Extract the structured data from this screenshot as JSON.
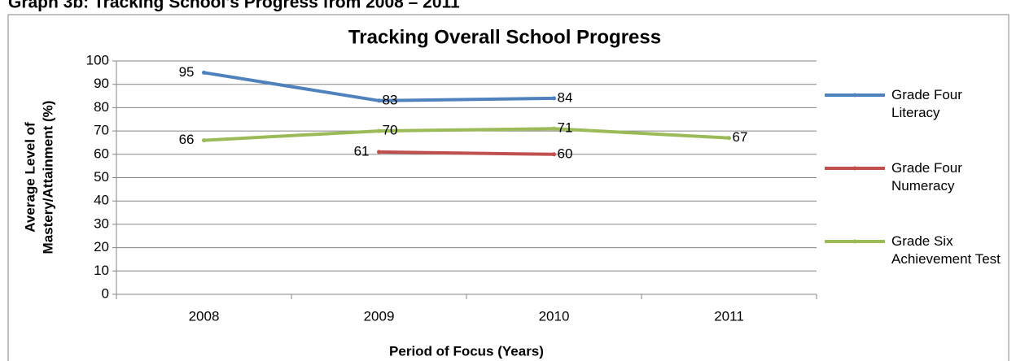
{
  "heading": "Graph 3b: Tracking School's Progress from 2008 – 2011",
  "chart_data": {
    "type": "line",
    "title": "Tracking Overall School Progress",
    "x_label": "Period of Focus (Years)",
    "y_label": [
      "Average Level of",
      "Mastery/Attainment (%)"
    ],
    "categories": [
      "2008",
      "2009",
      "2010",
      "2011"
    ],
    "series": [
      {
        "name": "Grade Four Literacy",
        "color": "#4f81bd",
        "values": [
          95,
          83,
          84,
          null
        ]
      },
      {
        "name": "Grade Four Numeracy",
        "color": "#c0504d",
        "values": [
          null,
          61,
          60,
          null
        ]
      },
      {
        "name": "Grade Six Achievement Test",
        "color": "#9bbb59",
        "values": [
          66,
          70,
          71,
          67
        ]
      }
    ],
    "ylim": [
      0,
      100
    ],
    "yticks": [
      0,
      10,
      20,
      30,
      40,
      50,
      60,
      70,
      80,
      90,
      100
    ],
    "grid": true,
    "legend": "right"
  }
}
